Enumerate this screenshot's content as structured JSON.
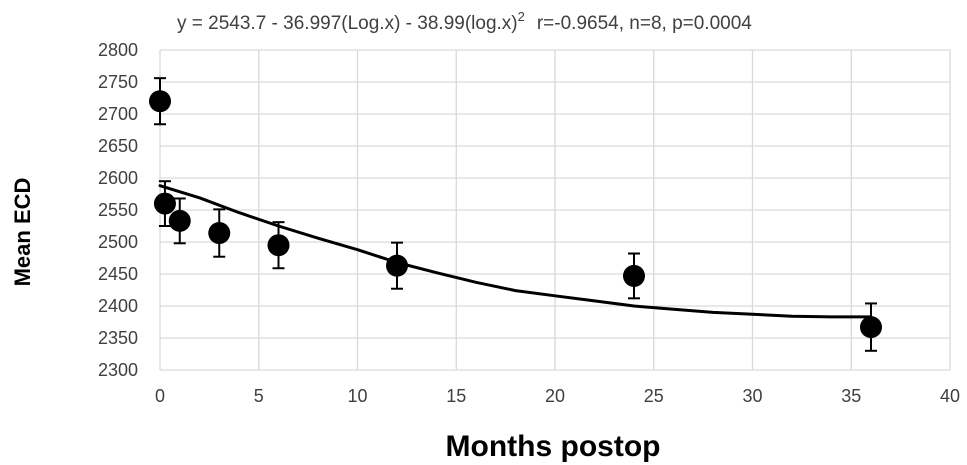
{
  "chart_data": {
    "type": "scatter",
    "title": "y = 2543.7 - 36.997(Log.x) - 38.99(log.x)",
    "title_superscript": "2",
    "stats": "r=-0.9654, n=8, p=0.0004",
    "xlabel": "Months postop",
    "ylabel": "Mean ECD",
    "xlim": [
      0,
      40
    ],
    "ylim": [
      2300,
      2800
    ],
    "x_ticks": [
      0,
      5,
      10,
      15,
      20,
      25,
      30,
      35,
      40
    ],
    "y_ticks": [
      2300,
      2350,
      2400,
      2450,
      2500,
      2550,
      2600,
      2650,
      2700,
      2750,
      2800
    ],
    "grid": true,
    "series": [
      {
        "points": [
          {
            "x": 0,
            "y": 2720,
            "err": 36
          },
          {
            "x": 0.25,
            "y": 2560,
            "err": 35
          },
          {
            "x": 1,
            "y": 2533,
            "err": 35
          },
          {
            "x": 3,
            "y": 2514,
            "err": 37
          },
          {
            "x": 6,
            "y": 2495,
            "err": 36
          },
          {
            "x": 12,
            "y": 2463,
            "err": 36
          },
          {
            "x": 24,
            "y": 2447,
            "err": 35
          },
          {
            "x": 36,
            "y": 2367,
            "err": 37
          }
        ]
      }
    ],
    "trendline": [
      {
        "x": 0,
        "y": 2588
      },
      {
        "x": 2,
        "y": 2569
      },
      {
        "x": 4,
        "y": 2546
      },
      {
        "x": 6,
        "y": 2525
      },
      {
        "x": 8,
        "y": 2506
      },
      {
        "x": 10,
        "y": 2488
      },
      {
        "x": 12,
        "y": 2468
      },
      {
        "x": 14,
        "y": 2452
      },
      {
        "x": 16,
        "y": 2437
      },
      {
        "x": 18,
        "y": 2424
      },
      {
        "x": 20,
        "y": 2416
      },
      {
        "x": 22,
        "y": 2408
      },
      {
        "x": 24,
        "y": 2400
      },
      {
        "x": 26,
        "y": 2395
      },
      {
        "x": 28,
        "y": 2390
      },
      {
        "x": 30,
        "y": 2387
      },
      {
        "x": 32,
        "y": 2384
      },
      {
        "x": 34,
        "y": 2383
      },
      {
        "x": 36,
        "y": 2383
      }
    ],
    "colors": {
      "marker": "#000000",
      "trendline": "#000000",
      "grid": "#d9d9d9",
      "text": "#404040"
    }
  }
}
